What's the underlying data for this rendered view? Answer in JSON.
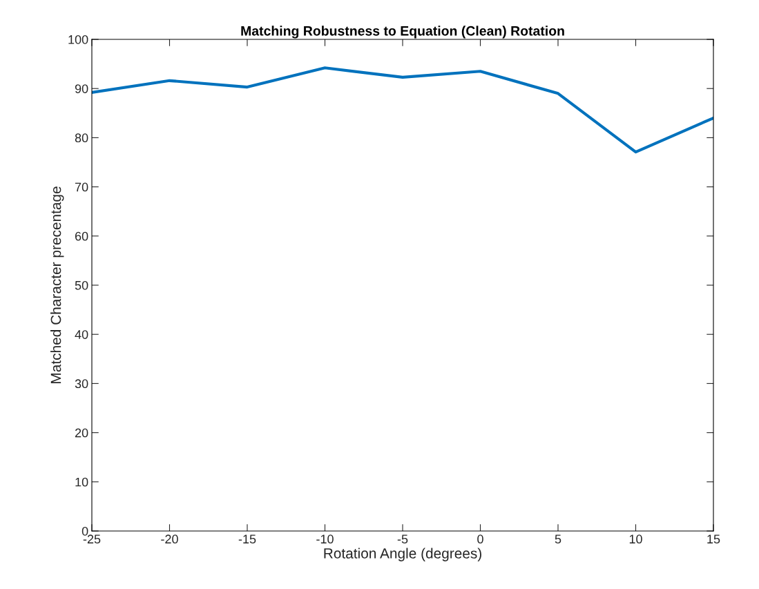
{
  "chart_data": {
    "type": "line",
    "title": "Matching Robustness to Equation (Clean) Rotation",
    "xlabel": "Rotation Angle (degrees)",
    "ylabel": "Matched Character precentage",
    "x": [
      -25,
      -20,
      -15,
      -10,
      -5,
      0,
      5,
      10,
      15
    ],
    "series": [
      {
        "color": "#0072bd",
        "values": [
          89.2,
          91.6,
          90.3,
          94.2,
          92.3,
          93.5,
          89.0,
          77.1,
          84.0
        ]
      }
    ],
    "xlim": [
      -25,
      15
    ],
    "xticks": [
      -25,
      -20,
      -15,
      -10,
      -5,
      0,
      5,
      10,
      15
    ],
    "ylim": [
      0,
      100
    ],
    "yticks": [
      0,
      10,
      20,
      30,
      40,
      50,
      60,
      70,
      80,
      90,
      100
    ],
    "grid": false,
    "legend": false,
    "marker": "none",
    "line_style": "solid"
  }
}
